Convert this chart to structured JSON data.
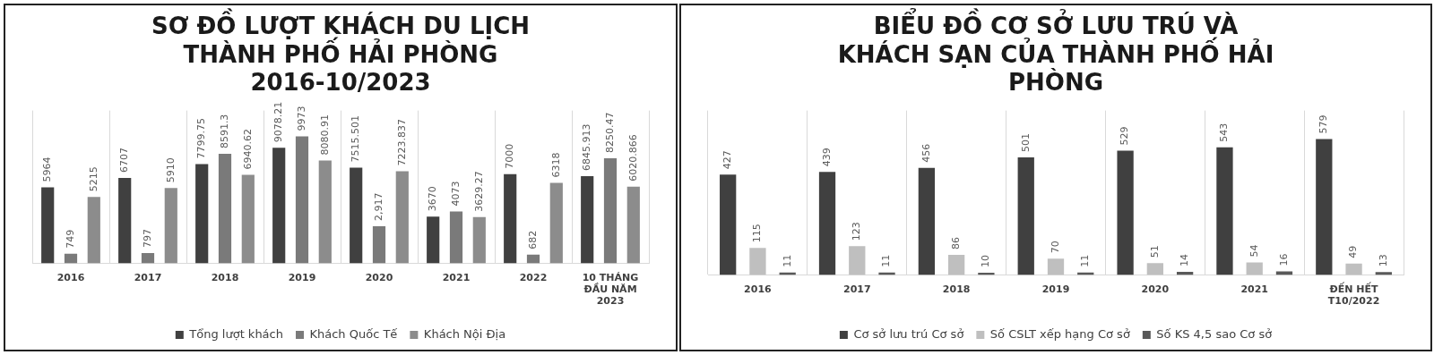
{
  "chart_data": [
    {
      "type": "bar",
      "title": "SƠ ĐỒ LƯỢT KHÁCH DU LỊCH THÀNH PHỐ HẢI PHÒNG 2016-10/2023",
      "categories": [
        "2016",
        "2017",
        "2018",
        "2019",
        "2020",
        "2021",
        "2022",
        "10 THÁNG ĐẦU NĂM 2023"
      ],
      "grid": "x",
      "legend": "bottom",
      "data_labels": true,
      "series": [
        {
          "name": "Tổng lượt khách",
          "color": "#404040",
          "values": [
            5964,
            6707,
            7799.75,
            9078.21,
            7515.501,
            3670,
            7000,
            6845.913
          ],
          "value_labels": [
            "5964",
            "6707",
            "7799.75",
            "9078.21",
            "7515.501",
            "3670",
            "7000",
            "6845.913"
          ]
        },
        {
          "name": "Khách Quốc Tế",
          "color": "#7a7a7a",
          "values": [
            749,
            797,
            8591.3,
            9973,
            2917,
            4073,
            682,
            8250.47
          ],
          "value_labels": [
            "749",
            "797",
            "8591.3",
            "9973",
            "2,917",
            "4073",
            "682",
            "8250.47"
          ]
        },
        {
          "name": "Khách Nội Địa",
          "color": "#8c8c8c",
          "values": [
            5215,
            5910,
            6940.62,
            8080.91,
            7223.837,
            3629.27,
            6318,
            6020.866
          ],
          "value_labels": [
            "5215",
            "5910",
            "6940.62",
            "8080.91",
            "7223.837",
            "3629.27",
            "6318",
            "6020.866"
          ]
        }
      ]
    },
    {
      "type": "bar",
      "title": "BIỂU ĐỒ CƠ SỞ LƯU TRÚ VÀ KHÁCH SẠN CỦA THÀNH PHỐ HẢI PHÒNG",
      "categories": [
        "2016",
        "2017",
        "2018",
        "2019",
        "2020",
        "2021",
        "ĐẾN HẾT T10/2022"
      ],
      "grid": "x",
      "legend": "bottom",
      "data_labels": true,
      "series": [
        {
          "name": "Cơ sở lưu trú Cơ sở",
          "color": "#404040",
          "values": [
            427,
            439,
            456,
            501,
            529,
            543,
            579
          ]
        },
        {
          "name": "Số CSLT xếp hạng Cơ sở",
          "color": "#bfbfbf",
          "values": [
            115,
            123,
            86,
            70,
            51,
            54,
            49
          ]
        },
        {
          "name": "Số KS 4,5 sao Cơ sở",
          "color": "#595959",
          "values": [
            11,
            11,
            10,
            11,
            14,
            16,
            13
          ]
        }
      ]
    }
  ]
}
